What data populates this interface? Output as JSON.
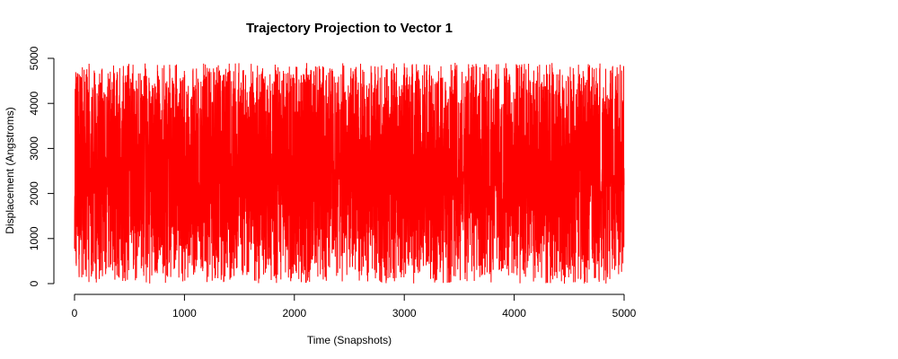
{
  "chart_data": {
    "type": "line",
    "title": "Trajectory Projection to Vector 1",
    "xlabel": "Time (Snapshots)",
    "ylabel": "Displacement (Angstroms)",
    "xlim": [
      0,
      5000
    ],
    "ylim": [
      0,
      5000
    ],
    "x_ticks": [
      0,
      1000,
      2000,
      3000,
      4000,
      5000
    ],
    "y_ticks": [
      0,
      1000,
      2000,
      3000,
      4000,
      5000
    ],
    "grid": false,
    "legend": "none",
    "series": [
      {
        "color": "#ff0000",
        "x_start": 0,
        "x_end": 5000,
        "n_points": 5000,
        "value_min": 0,
        "value_max": 4900,
        "value_typical": [
          1000,
          4000
        ]
      }
    ]
  }
}
